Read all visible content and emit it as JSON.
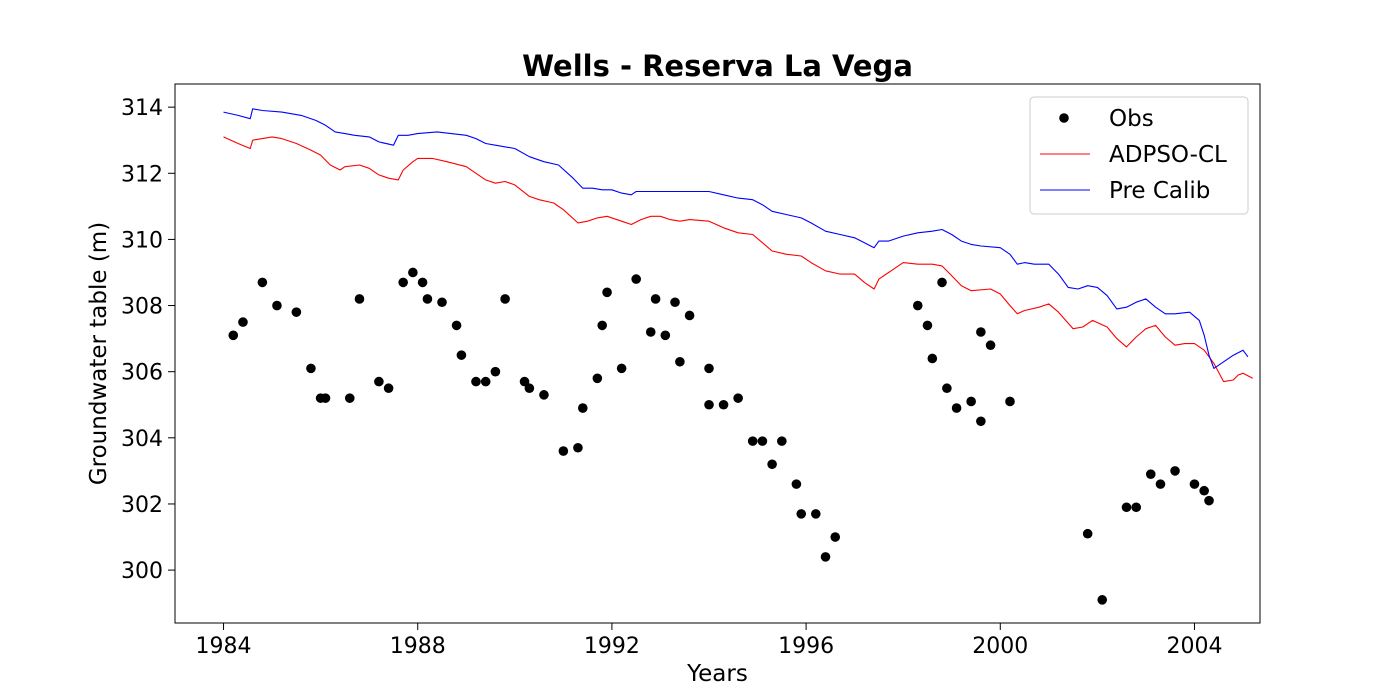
{
  "chart_data": {
    "type": "line",
    "title": "Wells - Reserva La Vega",
    "xlabel": "Years",
    "ylabel": "Groundwater table (m)",
    "xlim": [
      1983.0,
      2005.35
    ],
    "ylim": [
      298.4,
      314.7
    ],
    "xticks": [
      1984,
      1988,
      1992,
      1996,
      2000,
      2004
    ],
    "yticks": [
      300,
      302,
      304,
      306,
      308,
      310,
      312,
      314
    ],
    "grid": false,
    "legend_position": "top-right",
    "colors": {
      "obs": "#000000",
      "adpso": "#ff0000",
      "precalib": "#0000ff"
    },
    "series": [
      {
        "name": "Obs",
        "style": "markers",
        "points": [
          [
            1984.2,
            307.1
          ],
          [
            1984.4,
            307.5
          ],
          [
            1984.8,
            308.7
          ],
          [
            1985.1,
            308.0
          ],
          [
            1985.5,
            307.8
          ],
          [
            1985.8,
            306.1
          ],
          [
            1986.0,
            305.2
          ],
          [
            1986.1,
            305.2
          ],
          [
            1986.6,
            305.2
          ],
          [
            1986.8,
            308.2
          ],
          [
            1987.2,
            305.7
          ],
          [
            1987.4,
            305.5
          ],
          [
            1987.7,
            308.7
          ],
          [
            1987.9,
            309.0
          ],
          [
            1988.1,
            308.7
          ],
          [
            1988.2,
            308.2
          ],
          [
            1988.5,
            308.1
          ],
          [
            1988.8,
            307.4
          ],
          [
            1988.9,
            306.5
          ],
          [
            1989.2,
            305.7
          ],
          [
            1989.4,
            305.7
          ],
          [
            1989.6,
            306.0
          ],
          [
            1989.8,
            308.2
          ],
          [
            1990.2,
            305.7
          ],
          [
            1990.3,
            305.5
          ],
          [
            1990.6,
            305.3
          ],
          [
            1991.0,
            303.6
          ],
          [
            1991.3,
            303.7
          ],
          [
            1991.4,
            304.9
          ],
          [
            1991.7,
            305.8
          ],
          [
            1991.8,
            307.4
          ],
          [
            1991.9,
            308.4
          ],
          [
            1992.2,
            306.1
          ],
          [
            1992.5,
            308.8
          ],
          [
            1992.8,
            307.2
          ],
          [
            1992.9,
            308.2
          ],
          [
            1993.1,
            307.1
          ],
          [
            1993.3,
            308.1
          ],
          [
            1993.4,
            306.3
          ],
          [
            1993.6,
            307.7
          ],
          [
            1994.0,
            306.1
          ],
          [
            1994.0,
            305.0
          ],
          [
            1994.3,
            305.0
          ],
          [
            1994.6,
            305.2
          ],
          [
            1994.9,
            303.9
          ],
          [
            1995.1,
            303.9
          ],
          [
            1995.3,
            303.2
          ],
          [
            1995.5,
            303.9
          ],
          [
            1995.8,
            302.6
          ],
          [
            1995.9,
            301.7
          ],
          [
            1996.2,
            301.7
          ],
          [
            1996.4,
            300.4
          ],
          [
            1996.6,
            301.0
          ],
          [
            1998.3,
            308.0
          ],
          [
            1998.5,
            307.4
          ],
          [
            1998.6,
            306.4
          ],
          [
            1998.8,
            308.7
          ],
          [
            1998.9,
            305.5
          ],
          [
            1999.1,
            304.9
          ],
          [
            1999.4,
            305.1
          ],
          [
            1999.6,
            304.5
          ],
          [
            1999.6,
            307.2
          ],
          [
            1999.8,
            306.8
          ],
          [
            2000.2,
            305.1
          ],
          [
            2001.8,
            301.1
          ],
          [
            2002.1,
            299.1
          ],
          [
            2002.6,
            301.9
          ],
          [
            2002.8,
            301.9
          ],
          [
            2003.1,
            302.9
          ],
          [
            2003.3,
            302.6
          ],
          [
            2003.6,
            303.0
          ],
          [
            2004.0,
            302.6
          ],
          [
            2004.2,
            302.4
          ],
          [
            2004.3,
            302.1
          ]
        ]
      },
      {
        "name": "ADPSO-CL",
        "style": "line",
        "points": [
          [
            1984.0,
            313.1
          ],
          [
            1984.3,
            312.9
          ],
          [
            1984.55,
            312.75
          ],
          [
            1984.6,
            313.0
          ],
          [
            1984.8,
            313.05
          ],
          [
            1985.0,
            313.1
          ],
          [
            1985.2,
            313.05
          ],
          [
            1985.5,
            312.9
          ],
          [
            1985.8,
            312.7
          ],
          [
            1986.0,
            312.55
          ],
          [
            1986.2,
            312.25
          ],
          [
            1986.4,
            312.1
          ],
          [
            1986.5,
            312.2
          ],
          [
            1986.8,
            312.25
          ],
          [
            1987.0,
            312.15
          ],
          [
            1987.2,
            311.95
          ],
          [
            1987.4,
            311.85
          ],
          [
            1987.6,
            311.8
          ],
          [
            1987.7,
            312.1
          ],
          [
            1987.9,
            312.35
          ],
          [
            1988.0,
            312.45
          ],
          [
            1988.3,
            312.45
          ],
          [
            1988.6,
            312.35
          ],
          [
            1989.0,
            312.2
          ],
          [
            1989.2,
            312.0
          ],
          [
            1989.4,
            311.8
          ],
          [
            1989.6,
            311.7
          ],
          [
            1989.8,
            311.75
          ],
          [
            1990.0,
            311.65
          ],
          [
            1990.3,
            311.3
          ],
          [
            1990.5,
            311.2
          ],
          [
            1990.8,
            311.1
          ],
          [
            1991.0,
            310.9
          ],
          [
            1991.3,
            310.5
          ],
          [
            1991.5,
            310.55
          ],
          [
            1991.7,
            310.65
          ],
          [
            1991.9,
            310.7
          ],
          [
            1992.2,
            310.55
          ],
          [
            1992.4,
            310.45
          ],
          [
            1992.6,
            310.6
          ],
          [
            1992.8,
            310.7
          ],
          [
            1993.0,
            310.7
          ],
          [
            1993.2,
            310.6
          ],
          [
            1993.4,
            310.55
          ],
          [
            1993.6,
            310.6
          ],
          [
            1994.0,
            310.55
          ],
          [
            1994.3,
            310.35
          ],
          [
            1994.6,
            310.2
          ],
          [
            1994.9,
            310.15
          ],
          [
            1995.1,
            309.9
          ],
          [
            1995.3,
            309.65
          ],
          [
            1995.6,
            309.55
          ],
          [
            1995.9,
            309.5
          ],
          [
            1996.1,
            309.3
          ],
          [
            1996.4,
            309.05
          ],
          [
            1996.7,
            308.95
          ],
          [
            1997.0,
            308.95
          ],
          [
            1997.2,
            308.7
          ],
          [
            1997.4,
            308.5
          ],
          [
            1997.5,
            308.8
          ],
          [
            1997.7,
            309.0
          ],
          [
            1997.9,
            309.2
          ],
          [
            1998.0,
            309.3
          ],
          [
            1998.3,
            309.25
          ],
          [
            1998.6,
            309.25
          ],
          [
            1998.8,
            309.2
          ],
          [
            1999.0,
            308.9
          ],
          [
            1999.2,
            308.6
          ],
          [
            1999.4,
            308.45
          ],
          [
            1999.8,
            308.5
          ],
          [
            2000.0,
            308.35
          ],
          [
            2000.2,
            308.0
          ],
          [
            2000.35,
            307.75
          ],
          [
            2000.5,
            307.85
          ],
          [
            2000.8,
            307.95
          ],
          [
            2001.0,
            308.05
          ],
          [
            2001.2,
            307.8
          ],
          [
            2001.5,
            307.3
          ],
          [
            2001.7,
            307.35
          ],
          [
            2001.9,
            307.55
          ],
          [
            2002.2,
            307.35
          ],
          [
            2002.4,
            307.0
          ],
          [
            2002.6,
            306.75
          ],
          [
            2002.8,
            307.05
          ],
          [
            2003.0,
            307.3
          ],
          [
            2003.2,
            307.4
          ],
          [
            2003.4,
            307.05
          ],
          [
            2003.6,
            306.8
          ],
          [
            2003.8,
            306.85
          ],
          [
            2004.0,
            306.85
          ],
          [
            2004.2,
            306.65
          ],
          [
            2004.4,
            306.25
          ],
          [
            2004.6,
            305.7
          ],
          [
            2004.8,
            305.75
          ],
          [
            2004.9,
            305.9
          ],
          [
            2005.0,
            305.95
          ],
          [
            2005.2,
            305.8
          ]
        ]
      },
      {
        "name": "Pre Calib",
        "style": "line",
        "points": [
          [
            1984.0,
            313.85
          ],
          [
            1984.3,
            313.75
          ],
          [
            1984.55,
            313.65
          ],
          [
            1984.6,
            313.95
          ],
          [
            1984.8,
            313.9
          ],
          [
            1985.2,
            313.85
          ],
          [
            1985.6,
            313.75
          ],
          [
            1985.9,
            313.6
          ],
          [
            1986.1,
            313.45
          ],
          [
            1986.3,
            313.25
          ],
          [
            1986.5,
            313.2
          ],
          [
            1986.7,
            313.15
          ],
          [
            1987.0,
            313.1
          ],
          [
            1987.2,
            312.95
          ],
          [
            1987.5,
            312.85
          ],
          [
            1987.6,
            313.15
          ],
          [
            1987.8,
            313.15
          ],
          [
            1988.0,
            313.2
          ],
          [
            1988.4,
            313.25
          ],
          [
            1989.0,
            313.15
          ],
          [
            1989.2,
            313.05
          ],
          [
            1989.4,
            312.9
          ],
          [
            1989.6,
            312.85
          ],
          [
            1990.0,
            312.75
          ],
          [
            1990.3,
            312.5
          ],
          [
            1990.6,
            312.35
          ],
          [
            1990.9,
            312.25
          ],
          [
            1991.2,
            311.85
          ],
          [
            1991.4,
            311.55
          ],
          [
            1991.6,
            311.55
          ],
          [
            1991.8,
            311.5
          ],
          [
            1992.0,
            311.5
          ],
          [
            1992.2,
            311.4
          ],
          [
            1992.4,
            311.35
          ],
          [
            1992.5,
            311.45
          ],
          [
            1992.7,
            311.45
          ],
          [
            1993.0,
            311.45
          ],
          [
            1993.3,
            311.45
          ],
          [
            1993.6,
            311.45
          ],
          [
            1994.0,
            311.45
          ],
          [
            1994.3,
            311.35
          ],
          [
            1994.6,
            311.25
          ],
          [
            1994.9,
            311.2
          ],
          [
            1995.1,
            311.05
          ],
          [
            1995.3,
            310.85
          ],
          [
            1995.6,
            310.75
          ],
          [
            1995.9,
            310.65
          ],
          [
            1996.1,
            310.5
          ],
          [
            1996.4,
            310.25
          ],
          [
            1996.7,
            310.15
          ],
          [
            1997.0,
            310.05
          ],
          [
            1997.2,
            309.9
          ],
          [
            1997.4,
            309.75
          ],
          [
            1997.5,
            309.95
          ],
          [
            1997.7,
            309.95
          ],
          [
            1998.0,
            310.1
          ],
          [
            1998.3,
            310.2
          ],
          [
            1998.6,
            310.25
          ],
          [
            1998.8,
            310.3
          ],
          [
            1999.0,
            310.15
          ],
          [
            1999.2,
            309.95
          ],
          [
            1999.4,
            309.85
          ],
          [
            1999.6,
            309.8
          ],
          [
            2000.0,
            309.75
          ],
          [
            2000.2,
            309.55
          ],
          [
            2000.35,
            309.25
          ],
          [
            2000.5,
            309.3
          ],
          [
            2000.7,
            309.25
          ],
          [
            2001.0,
            309.25
          ],
          [
            2001.2,
            308.95
          ],
          [
            2001.4,
            308.55
          ],
          [
            2001.6,
            308.5
          ],
          [
            2001.8,
            308.6
          ],
          [
            2002.0,
            308.55
          ],
          [
            2002.2,
            308.3
          ],
          [
            2002.4,
            307.9
          ],
          [
            2002.6,
            307.95
          ],
          [
            2002.8,
            308.1
          ],
          [
            2003.0,
            308.2
          ],
          [
            2003.2,
            307.95
          ],
          [
            2003.4,
            307.75
          ],
          [
            2003.6,
            307.75
          ],
          [
            2003.9,
            307.8
          ],
          [
            2004.1,
            307.55
          ],
          [
            2004.2,
            307.1
          ],
          [
            2004.3,
            306.5
          ],
          [
            2004.4,
            306.1
          ],
          [
            2004.6,
            306.3
          ],
          [
            2004.8,
            306.5
          ],
          [
            2005.0,
            306.65
          ],
          [
            2005.1,
            306.45
          ]
        ]
      }
    ]
  }
}
